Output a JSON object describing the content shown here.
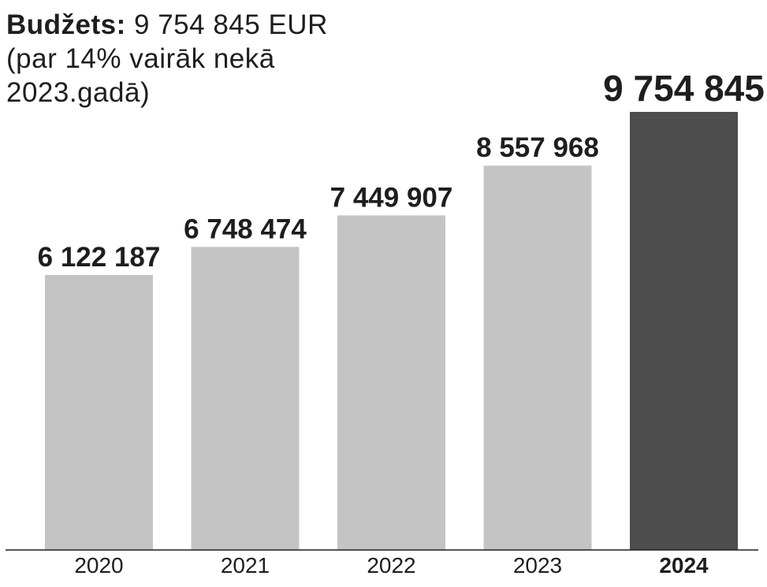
{
  "header": {
    "title_bold": "Budžets:",
    "title_value": "9 754 845 EUR",
    "subtitle_line1": "(par 14% vairāk nekā",
    "subtitle_line2": "2023.gadā)"
  },
  "colors": {
    "bar_default": "#c4c4c4",
    "bar_highlight": "#4d4d4d",
    "text": "#1e1e1e",
    "axis": "#1e1e1e"
  },
  "chart_data": {
    "type": "bar",
    "categories": [
      "2020",
      "2021",
      "2022",
      "2023",
      "2024"
    ],
    "values": [
      6122187,
      6748474,
      7449907,
      8557968,
      9754845
    ],
    "value_labels": [
      "6 122 187",
      "6 748 474",
      "7 449 907",
      "8 557 968",
      "9 754 845"
    ],
    "highlight_index": 4,
    "ylim": [
      0,
      9754845
    ],
    "grid": false,
    "legend": "none"
  }
}
